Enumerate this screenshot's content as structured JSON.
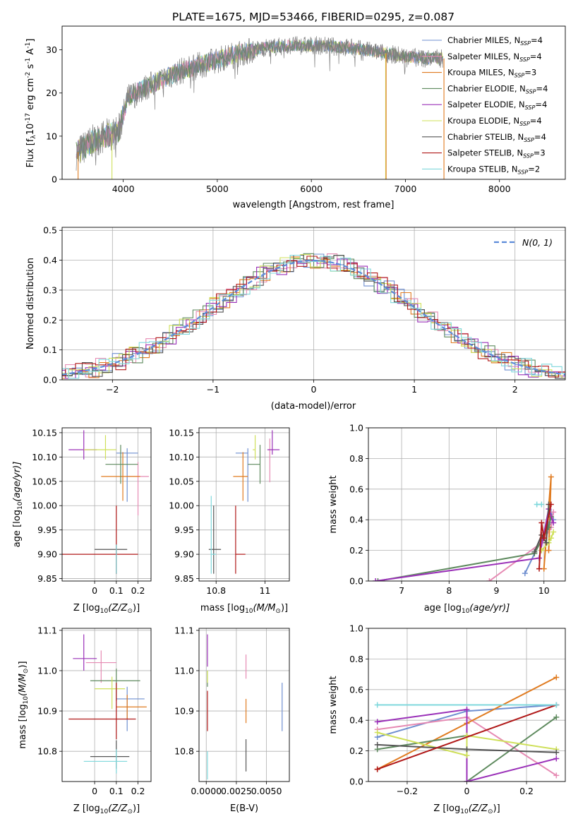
{
  "title": "PLATE=1675, MJD=53466, FIBERID=0295, z=0.087",
  "models": [
    {
      "name": "Chabrier MILES, N_SSP=4",
      "color": "#6f8fd0"
    },
    {
      "name": "Salpeter MILES, N_SSP=4",
      "color": "#e68ab3"
    },
    {
      "name": "Kroupa MILES, N_SSP=3",
      "color": "#e07b20"
    },
    {
      "name": "Chabrier ELODIE, N_SSP=4",
      "color": "#5e8a5e"
    },
    {
      "name": "Salpeter ELODIE, N_SSP=4",
      "color": "#9a30b8"
    },
    {
      "name": "Kroupa ELODIE, N_SSP=4",
      "color": "#cfe05a"
    },
    {
      "name": "Chabrier STELIB, N_SSP=4",
      "color": "#555555"
    },
    {
      "name": "Salpeter STELIB, N_SSP=3",
      "color": "#b01818"
    },
    {
      "name": "Kroupa STELIB, N_SSP=2",
      "color": "#7fd8dc"
    }
  ],
  "chart_data": [
    {
      "id": "spectrum",
      "type": "line",
      "xlabel": "wavelength [Angstrom, rest frame]",
      "ylabel_parts": {
        "main": "Flux [f",
        "lam": "λ",
        "rest": "10",
        "exp1": "-17",
        "unit": " erg cm",
        "exp2": "-2",
        "s": " s",
        "exp3": "-1",
        "a": " A",
        "exp4": "-1",
        "close": "]"
      },
      "xlim": [
        3350,
        8700
      ],
      "ylim": [
        0,
        35.5
      ],
      "xticks": [
        4000,
        5000,
        6000,
        7000,
        8000
      ],
      "yticks": [
        0,
        10,
        20,
        30
      ],
      "continuum": {
        "x": [
          3500,
          3650,
          3800,
          3950,
          4050,
          4300,
          4600,
          4900,
          5200,
          5500,
          5800,
          6100,
          6400,
          6700,
          7000,
          7200,
          7400
        ],
        "y": [
          6,
          8.5,
          10,
          11,
          19,
          22,
          25,
          27,
          29,
          30.5,
          31,
          31,
          30.5,
          29.5,
          28.5,
          28,
          28
        ]
      },
      "spikes": [
        {
          "x": 3520,
          "y_low": 0,
          "model": 2
        },
        {
          "x": 3880,
          "y_low": 0,
          "model": 5
        },
        {
          "x": 6790,
          "y_low": 0,
          "model": 5
        },
        {
          "x": 6795,
          "y_low": 0,
          "model": 2
        },
        {
          "x": 7410,
          "y_low": 0,
          "model": 2
        }
      ],
      "legend_loc": "upper right"
    },
    {
      "id": "residuals",
      "type": "step",
      "xlabel": "(data-model)/error",
      "ylabel": "Normed distribution",
      "xlim": [
        -2.5,
        2.5
      ],
      "ylim": [
        0,
        0.51
      ],
      "xticks": [
        -2,
        -1,
        0,
        1,
        2
      ],
      "yticks": [
        0.0,
        0.1,
        0.2,
        0.3,
        0.4,
        0.5
      ],
      "grid": true,
      "normal_curve_label": "N(0, 1)",
      "normal_color": "#5b8bd9",
      "bin_width": 0.1,
      "legend_loc": "upper right"
    },
    {
      "id": "age_vs_Z",
      "type": "errorbar",
      "xlabel_parts": {
        "a": "Z [log",
        "sub": "10",
        "b": "(Z/Z",
        "sun": "⊙",
        "c": ")]"
      },
      "ylabel_parts": {
        "a": "age  [log",
        "sub": "10",
        "b": "(age/yr)]"
      },
      "xlim": [
        -0.15,
        0.26
      ],
      "ylim": [
        9.845,
        10.16
      ],
      "xticks": [
        0.0,
        0.1,
        0.2
      ],
      "yticks": [
        9.85,
        9.9,
        9.95,
        10.0,
        10.05,
        10.1,
        10.15
      ],
      "grid": true,
      "points": [
        {
          "model": 0,
          "x": 0.15,
          "xerr": [
            0.05,
            0.05
          ],
          "y": 10.108,
          "yerr": [
            0.1,
            0.01
          ]
        },
        {
          "model": 1,
          "x": 0.2,
          "xerr": [
            0.05,
            0.05
          ],
          "y": 10.06,
          "yerr": [
            0.08,
            0.03
          ]
        },
        {
          "model": 2,
          "x": 0.13,
          "xerr": [
            0.1,
            0.08
          ],
          "y": 10.06,
          "yerr": [
            0.05,
            0.05
          ]
        },
        {
          "model": 3,
          "x": 0.12,
          "xerr": [
            0.07,
            0.08
          ],
          "y": 10.085,
          "yerr": [
            0.04,
            0.04
          ]
        },
        {
          "model": 4,
          "x": -0.05,
          "xerr": [
            0.07,
            0.06
          ],
          "y": 10.115,
          "yerr": [
            0.02,
            0.04
          ]
        },
        {
          "model": 5,
          "x": 0.05,
          "xerr": [
            0.1,
            0.05
          ],
          "y": 10.115,
          "yerr": [
            0.02,
            0.03
          ]
        },
        {
          "model": 6,
          "x": 0.1,
          "xerr": [
            0.1,
            0.05
          ],
          "y": 9.91,
          "yerr": [
            0.05,
            0.01
          ]
        },
        {
          "model": 7,
          "x": 0.1,
          "xerr": [
            0.25,
            0.1
          ],
          "y": 9.9,
          "yerr": [
            0.04,
            0.1
          ]
        },
        {
          "model": 8,
          "x": 0.1,
          "xerr": [
            0.0,
            0.0
          ],
          "y": 9.9,
          "yerr": [
            0.04,
            0.02
          ]
        }
      ]
    },
    {
      "id": "age_vs_mass",
      "type": "errorbar",
      "xlabel_parts": {
        "a": "mass [log",
        "sub": "10",
        "b": "(M/M",
        "sun": "⊙",
        "c": ")]"
      },
      "xlim": [
        10.73,
        11.1
      ],
      "ylim": [
        9.845,
        10.16
      ],
      "xticks": [
        10.8,
        11.0
      ],
      "yticks": [
        9.85,
        9.9,
        9.95,
        10.0,
        10.05,
        10.1,
        10.15
      ],
      "grid": true,
      "points": [
        {
          "model": 0,
          "x": 10.93,
          "xerr": [
            0.05,
            0.0
          ],
          "y": 10.108,
          "yerr": [
            0.1,
            0.01
          ]
        },
        {
          "model": 1,
          "x": 11.02,
          "xerr": [
            0.0,
            0.0
          ],
          "y": 10.108,
          "yerr": [
            0.06,
            0.03
          ]
        },
        {
          "model": 2,
          "x": 10.91,
          "xerr": [
            0.04,
            0.02
          ],
          "y": 10.06,
          "yerr": [
            0.05,
            0.05
          ]
        },
        {
          "model": 3,
          "x": 10.98,
          "xerr": [
            0.05,
            0.0
          ],
          "y": 10.085,
          "yerr": [
            0.04,
            0.04
          ]
        },
        {
          "model": 4,
          "x": 11.03,
          "xerr": [
            0.02,
            0.03
          ],
          "y": 10.115,
          "yerr": [
            0.01,
            0.04
          ]
        },
        {
          "model": 5,
          "x": 10.96,
          "xerr": [
            0.01,
            0.0
          ],
          "y": 10.115,
          "yerr": [
            0.02,
            0.03
          ]
        },
        {
          "model": 6,
          "x": 10.79,
          "xerr": [
            0.02,
            0.03
          ],
          "y": 9.91,
          "yerr": [
            0.05,
            0.09
          ]
        },
        {
          "model": 7,
          "x": 10.88,
          "xerr": [
            0.0,
            0.04
          ],
          "y": 9.9,
          "yerr": [
            0.04,
            0.1
          ]
        },
        {
          "model": 8,
          "x": 10.78,
          "xerr": [
            0.0,
            0.02
          ],
          "y": 9.9,
          "yerr": [
            0.04,
            0.12
          ]
        }
      ]
    },
    {
      "id": "weight_vs_age",
      "type": "line",
      "xlabel_parts": {
        "a": "age  [log",
        "sub": "10",
        "b": "(age/yr)]"
      },
      "ylabel": "mass weight",
      "xlim": [
        6.3,
        10.45
      ],
      "ylim": [
        0,
        1
      ],
      "xticks": [
        7,
        8,
        9,
        10
      ],
      "yticks": [
        0.0,
        0.2,
        0.4,
        0.6,
        0.8,
        1.0
      ],
      "grid": true,
      "series": [
        {
          "model": 0,
          "x": [
            9.6,
            10.1,
            10.15,
            10.2
          ],
          "y": [
            0.05,
            0.37,
            0.45,
            0.4
          ]
        },
        {
          "model": 1,
          "x": [
            8.85,
            9.95,
            10.15,
            10.2
          ],
          "y": [
            0.0,
            0.25,
            0.35,
            0.45
          ]
        },
        {
          "model": 2,
          "x": [
            10.0,
            10.15,
            10.1
          ],
          "y": [
            0.08,
            0.68,
            0.2
          ]
        },
        {
          "model": 3,
          "x": [
            6.5,
            9.8,
            10.1,
            10.15
          ],
          "y": [
            0.0,
            0.18,
            0.35,
            0.42
          ]
        },
        {
          "model": 4,
          "x": [
            6.45,
            9.9,
            10.1,
            10.2
          ],
          "y": [
            0.0,
            0.15,
            0.47,
            0.38
          ]
        },
        {
          "model": 5,
          "x": [
            9.95,
            10.1,
            10.15,
            10.2
          ],
          "y": [
            0.2,
            0.25,
            0.28,
            0.32
          ]
        },
        {
          "model": 6,
          "x": [
            9.8,
            9.95,
            10.05,
            10.1
          ],
          "y": [
            0.19,
            0.3,
            0.25,
            0.5
          ]
        },
        {
          "model": 7,
          "x": [
            9.9,
            9.95,
            10.0,
            10.15
          ],
          "y": [
            0.08,
            0.38,
            0.28,
            0.5
          ]
        },
        {
          "model": 8,
          "x": [
            9.85,
            9.95
          ],
          "y": [
            0.5,
            0.5
          ]
        }
      ]
    },
    {
      "id": "mass_vs_Z",
      "type": "errorbar",
      "xlabel_parts": {
        "a": "Z [log",
        "sub": "10",
        "b": "(Z/Z",
        "sun": "⊙",
        "c": ")]"
      },
      "ylabel_parts": {
        "a": "mass [log",
        "sub": "10",
        "b": "(M/M",
        "sun": "⊙",
        "c": ")]"
      },
      "xlim": [
        -0.15,
        0.26
      ],
      "ylim": [
        10.725,
        11.105
      ],
      "xticks": [
        0.0,
        0.1,
        0.2
      ],
      "yticks": [
        10.8,
        10.9,
        11.0,
        11.1
      ],
      "grid": true,
      "points": [
        {
          "model": 0,
          "x": 0.15,
          "xerr": [
            0.05,
            0.08
          ],
          "y": 10.93,
          "yerr": [
            0.08,
            0.03
          ]
        },
        {
          "model": 1,
          "x": 0.03,
          "xerr": [
            0.07,
            0.07
          ],
          "y": 11.02,
          "yerr": [
            0.05,
            0.03
          ]
        },
        {
          "model": 2,
          "x": 0.15,
          "xerr": [
            0.05,
            0.09
          ],
          "y": 10.91,
          "yerr": [
            0.03,
            0.03
          ]
        },
        {
          "model": 3,
          "x": 0.1,
          "xerr": [
            0.12,
            0.11
          ],
          "y": 10.975,
          "yerr": [
            0.05,
            0.03
          ]
        },
        {
          "model": 4,
          "x": -0.05,
          "xerr": [
            0.05,
            0.06
          ],
          "y": 11.03,
          "yerr": [
            0.03,
            0.06
          ]
        },
        {
          "model": 5,
          "x": 0.08,
          "xerr": [
            0.08,
            0.06
          ],
          "y": 10.955,
          "yerr": [
            0.05,
            0.03
          ]
        },
        {
          "model": 6,
          "x": 0.1,
          "xerr": [
            0.12,
            0.06
          ],
          "y": 10.787,
          "yerr": [
            0.03,
            0.04
          ]
        },
        {
          "model": 7,
          "x": 0.1,
          "xerr": [
            0.22,
            0.09
          ],
          "y": 10.88,
          "yerr": [
            0.05,
            0.09
          ]
        },
        {
          "model": 8,
          "x": 0.1,
          "xerr": [
            0.15,
            0.05
          ],
          "y": 10.775,
          "yerr": [
            0.03,
            0.03
          ]
        }
      ]
    },
    {
      "id": "mass_vs_ebv",
      "type": "errorbar",
      "xlabel": "E(B-V)",
      "xlim": [
        -0.0006,
        0.0069
      ],
      "ylim": [
        10.725,
        11.105
      ],
      "xticks": [
        0.0,
        0.0025,
        0.005
      ],
      "xticklabels": [
        "0.0000",
        "0.0025",
        "0.0050"
      ],
      "yticks": [
        10.8,
        10.9,
        11.0,
        11.1
      ],
      "grid": true,
      "points": [
        {
          "model": 0,
          "x": 0.0063,
          "xerr": [
            0,
            0
          ],
          "y": 10.91,
          "yerr": [
            0.06,
            0.06
          ]
        },
        {
          "model": 1,
          "x": 0.0033,
          "xerr": [
            0,
            0
          ],
          "y": 11.01,
          "yerr": [
            0.03,
            0.03
          ]
        },
        {
          "model": 2,
          "x": 0.0033,
          "xerr": [
            0,
            0
          ],
          "y": 10.9,
          "yerr": [
            0.03,
            0.03
          ]
        },
        {
          "model": 3,
          "x": 0.0001,
          "xerr": [
            0,
            0
          ],
          "y": 10.98,
          "yerr": [
            0.02,
            0.02
          ]
        },
        {
          "model": 4,
          "x": 0.0001,
          "xerr": [
            0,
            0
          ],
          "y": 11.05,
          "yerr": [
            0.04,
            0.04
          ]
        },
        {
          "model": 5,
          "x": 0.0001,
          "xerr": [
            0,
            0
          ],
          "y": 10.985,
          "yerr": [
            0.015,
            0.015
          ]
        },
        {
          "model": 6,
          "x": 0.0033,
          "xerr": [
            0,
            0
          ],
          "y": 10.79,
          "yerr": [
            0.04,
            0.04
          ]
        },
        {
          "model": 7,
          "x": 0.0001,
          "xerr": [
            0,
            0
          ],
          "y": 10.9,
          "yerr": [
            0.05,
            0.05
          ]
        },
        {
          "model": 8,
          "x": 0.0001,
          "xerr": [
            0,
            0
          ],
          "y": 10.765,
          "yerr": [
            0.035,
            0.035
          ]
        }
      ]
    },
    {
      "id": "weight_vs_Z",
      "type": "line",
      "xlabel_parts": {
        "a": "Z [log",
        "sub": "10",
        "b": "(Z/Z",
        "sun": "⊙",
        "c": ")]"
      },
      "ylabel": "mass weight",
      "xlim": [
        -0.33,
        0.33
      ],
      "ylim": [
        0,
        1
      ],
      "xticks": [
        -0.2,
        0.0,
        0.2
      ],
      "yticks": [
        0.0,
        0.2,
        0.4,
        0.6,
        0.8,
        1.0
      ],
      "grid": true,
      "series": [
        {
          "model": 0,
          "x": [
            -0.3,
            0.0,
            0.3
          ],
          "y": [
            0.29,
            0.46,
            0.5
          ]
        },
        {
          "model": 1,
          "x": [
            -0.3,
            0.0,
            0.3
          ],
          "y": [
            0.34,
            0.42,
            0.04
          ]
        },
        {
          "model": 2,
          "x": [
            -0.3,
            0.0,
            0.3
          ],
          "y": [
            0.08,
            0.38,
            0.68
          ]
        },
        {
          "model": 3,
          "x": [
            -0.3,
            0.0,
            0.0,
            0.3
          ],
          "y": [
            0.21,
            0.3,
            0.0,
            0.42
          ]
        },
        {
          "model": 4,
          "x": [
            -0.3,
            0.0,
            0.0,
            0.3
          ],
          "y": [
            0.39,
            0.47,
            0.0,
            0.15
          ]
        },
        {
          "model": 5,
          "x": [
            -0.3,
            0.0,
            0.0,
            0.3
          ],
          "y": [
            0.32,
            0.17,
            0.3,
            0.21
          ]
        },
        {
          "model": 6,
          "x": [
            -0.3,
            0.0,
            0.3
          ],
          "y": [
            0.24,
            0.21,
            0.19
          ]
        },
        {
          "model": 7,
          "x": [
            -0.3,
            0.3
          ],
          "y": [
            0.08,
            0.5
          ]
        },
        {
          "model": 8,
          "x": [
            -0.3,
            0.3
          ],
          "y": [
            0.5,
            0.5
          ]
        }
      ]
    }
  ]
}
